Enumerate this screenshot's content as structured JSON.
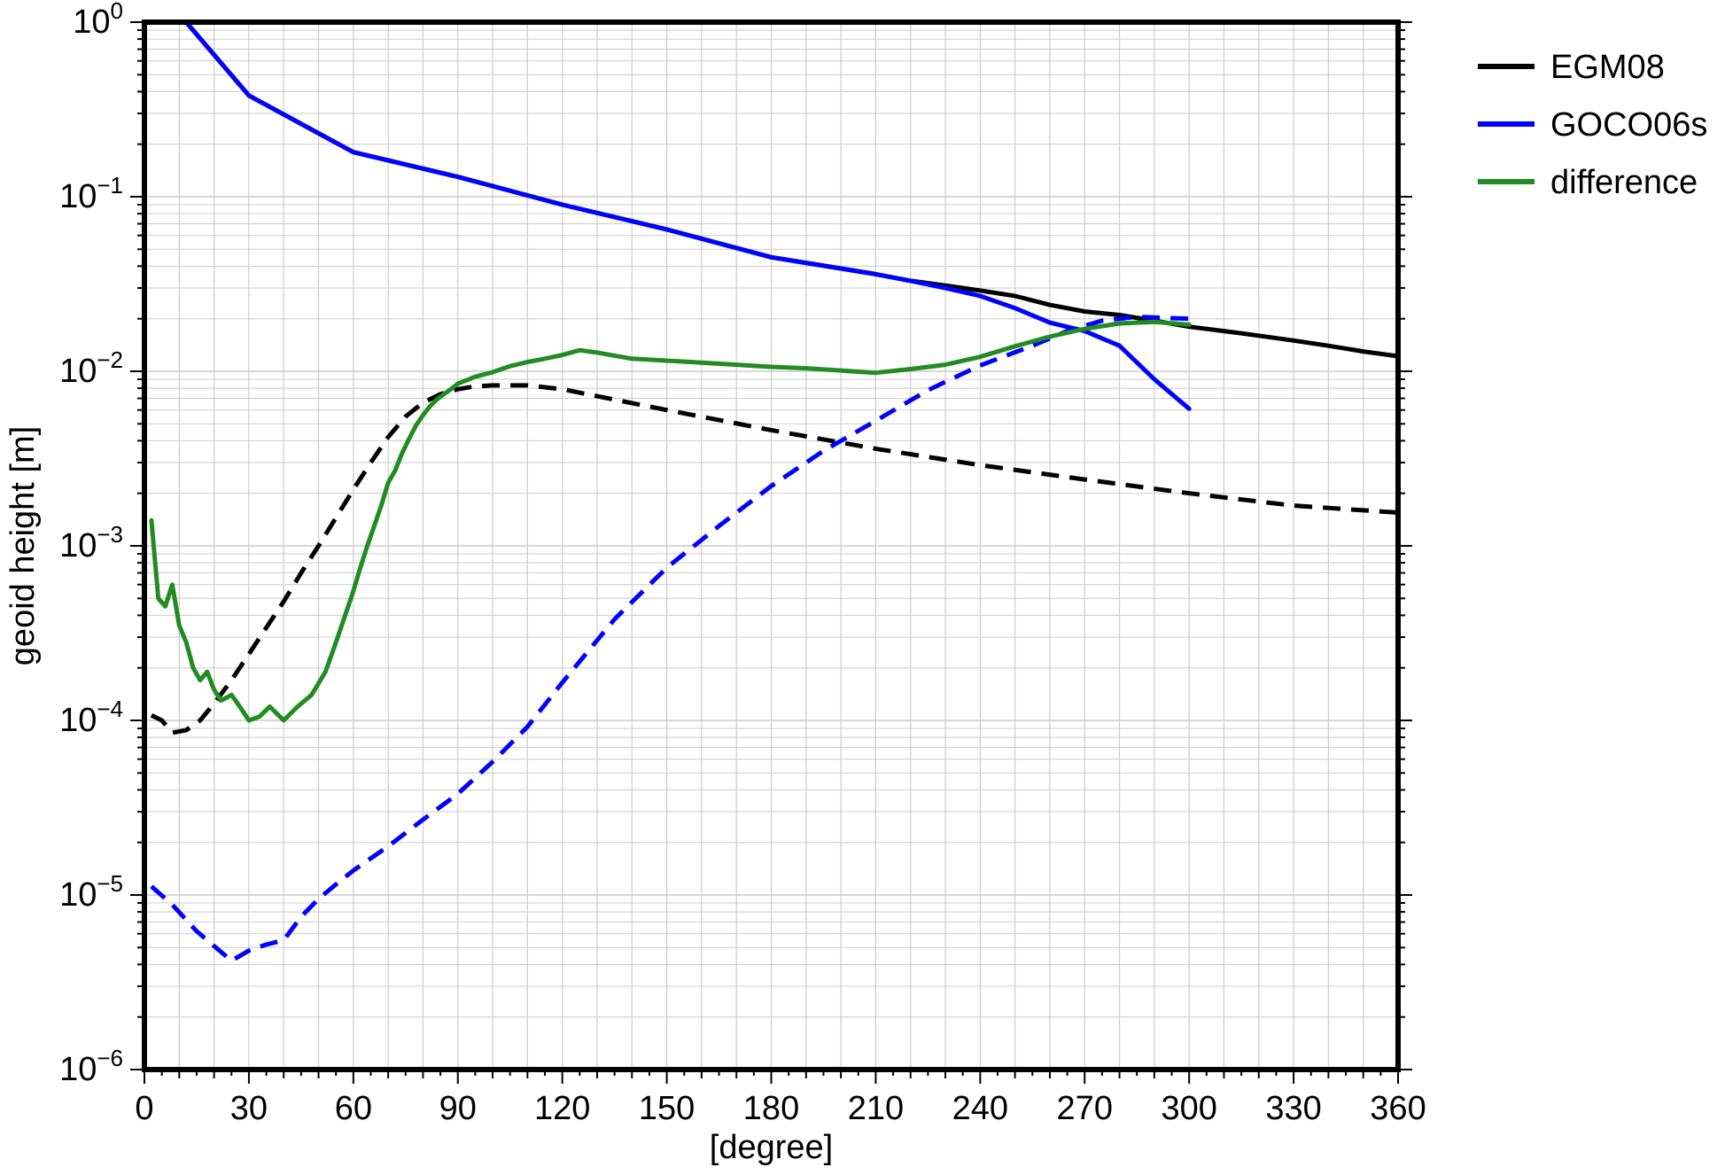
{
  "chart_data": {
    "type": "line",
    "xlabel": "[degree]",
    "ylabel": "geoid height [m]",
    "x_scale": "linear",
    "y_scale": "log",
    "xlim": [
      0,
      360
    ],
    "ylim": [
      1e-06,
      1
    ],
    "x_ticks": [
      0,
      30,
      60,
      90,
      120,
      150,
      180,
      210,
      240,
      270,
      300,
      330,
      360
    ],
    "x_tick_labels": [
      "0",
      "30",
      "60",
      "90",
      "120",
      "150",
      "180",
      "210",
      "240",
      "270",
      "300",
      "330",
      "360"
    ],
    "y_ticks": [
      {
        "value": 1,
        "base": "10",
        "exp": "0"
      },
      {
        "value": 0.1,
        "base": "10",
        "exp": "−1"
      },
      {
        "value": 0.01,
        "base": "10",
        "exp": "−2"
      },
      {
        "value": 0.001,
        "base": "10",
        "exp": "−3"
      },
      {
        "value": 0.0001,
        "base": "10",
        "exp": "−4"
      },
      {
        "value": 1e-05,
        "base": "10",
        "exp": "−5"
      },
      {
        "value": 1e-06,
        "base": "10",
        "exp": "−6"
      }
    ],
    "grid": true,
    "legend_position": "outside-top-right",
    "series": [
      {
        "name": "EGM08",
        "color": "#000000",
        "style": "solid",
        "x": [
          12,
          30,
          60,
          90,
          120,
          150,
          180,
          210,
          220,
          230,
          240,
          250,
          260,
          270,
          280,
          290,
          300,
          310,
          320,
          330,
          340,
          350,
          360
        ],
        "y": [
          1.0,
          0.38,
          0.18,
          0.13,
          0.09,
          0.065,
          0.045,
          0.036,
          0.033,
          0.031,
          0.029,
          0.027,
          0.024,
          0.022,
          0.021,
          0.0195,
          0.018,
          0.017,
          0.016,
          0.015,
          0.014,
          0.013,
          0.0122
        ]
      },
      {
        "name": "",
        "color": "#000000",
        "style": "dashed",
        "x": [
          2,
          5,
          8,
          12,
          16,
          20,
          25,
          30,
          35,
          40,
          45,
          50,
          55,
          60,
          65,
          70,
          75,
          80,
          85,
          90,
          95,
          100,
          110,
          120,
          130,
          150,
          180,
          210,
          240,
          270,
          300,
          330,
          360
        ],
        "y": [
          0.000107,
          0.0001,
          8.5e-05,
          8.8e-05,
          0.0001,
          0.000125,
          0.00017,
          0.00024,
          0.00034,
          0.00048,
          0.0007,
          0.001,
          0.00145,
          0.0021,
          0.003,
          0.0042,
          0.0055,
          0.0066,
          0.0074,
          0.0079,
          0.0082,
          0.0083,
          0.0083,
          0.0079,
          0.0072,
          0.006,
          0.0046,
          0.0036,
          0.0029,
          0.0024,
          0.002,
          0.0017,
          0.00155
        ]
      },
      {
        "name": "GOCO06s",
        "color": "#0000ff",
        "style": "solid",
        "x": [
          12,
          30,
          60,
          90,
          120,
          150,
          180,
          210,
          220,
          230,
          240,
          250,
          260,
          270,
          280,
          290,
          300
        ],
        "y": [
          1.0,
          0.38,
          0.18,
          0.13,
          0.09,
          0.065,
          0.045,
          0.036,
          0.033,
          0.03,
          0.027,
          0.023,
          0.019,
          0.017,
          0.014,
          0.009,
          0.0061
        ]
      },
      {
        "name": "",
        "color": "#0000ff",
        "style": "dashed",
        "x": [
          2,
          8,
          15,
          20,
          25,
          30,
          35,
          40,
          45,
          50,
          55,
          60,
          70,
          80,
          90,
          100,
          110,
          120,
          135,
          150,
          165,
          180,
          195,
          210,
          225,
          240,
          255,
          265,
          275,
          285,
          300
        ],
        "y": [
          1.12e-05,
          8.8e-06,
          6.2e-06,
          5.1e-06,
          4.2e-06,
          4.8e-06,
          5.2e-06,
          5.5e-06,
          7.5e-06,
          9.5e-06,
          1.15e-05,
          1.38e-05,
          1.9e-05,
          2.7e-05,
          3.8e-05,
          5.8e-05,
          9.2e-05,
          0.000165,
          0.00038,
          0.00075,
          0.0013,
          0.0022,
          0.0035,
          0.0052,
          0.0078,
          0.0108,
          0.014,
          0.017,
          0.0195,
          0.0205,
          0.02
        ]
      },
      {
        "name": "difference",
        "color": "#228b22",
        "style": "solid",
        "x": [
          2,
          4,
          6,
          8,
          10,
          12,
          14,
          16,
          18,
          20,
          22,
          25,
          28,
          30,
          33,
          36,
          40,
          44,
          48,
          52,
          55,
          58,
          60,
          62,
          64,
          66,
          68,
          70,
          72,
          74,
          76,
          78,
          80,
          82,
          84,
          86,
          88,
          90,
          95,
          100,
          105,
          110,
          115,
          120,
          125,
          130,
          140,
          150,
          160,
          170,
          180,
          190,
          200,
          210,
          220,
          230,
          240,
          250,
          260,
          270,
          280,
          290,
          300
        ],
        "y": [
          0.0014,
          0.0005,
          0.00045,
          0.0006,
          0.00035,
          0.00028,
          0.0002,
          0.00017,
          0.00019,
          0.00015,
          0.00013,
          0.00014,
          0.000115,
          0.0001,
          0.000105,
          0.00012,
          0.0001,
          0.00012,
          0.00014,
          0.00019,
          0.00028,
          0.00042,
          0.00055,
          0.00075,
          0.001,
          0.0013,
          0.0017,
          0.0023,
          0.0027,
          0.0034,
          0.0041,
          0.0049,
          0.0056,
          0.0063,
          0.0069,
          0.0074,
          0.0079,
          0.0085,
          0.0093,
          0.0099,
          0.0107,
          0.0113,
          0.0118,
          0.0124,
          0.0132,
          0.0128,
          0.0118,
          0.0115,
          0.0112,
          0.0109,
          0.0106,
          0.0104,
          0.0101,
          0.0098,
          0.0103,
          0.0109,
          0.0121,
          0.0139,
          0.0158,
          0.0175,
          0.0188,
          0.0192,
          0.0185
        ]
      }
    ],
    "legend": [
      {
        "label": "EGM08",
        "color": "#000000"
      },
      {
        "label": "GOCO06s",
        "color": "#0000ff"
      },
      {
        "label": "difference",
        "color": "#228b22"
      }
    ]
  }
}
